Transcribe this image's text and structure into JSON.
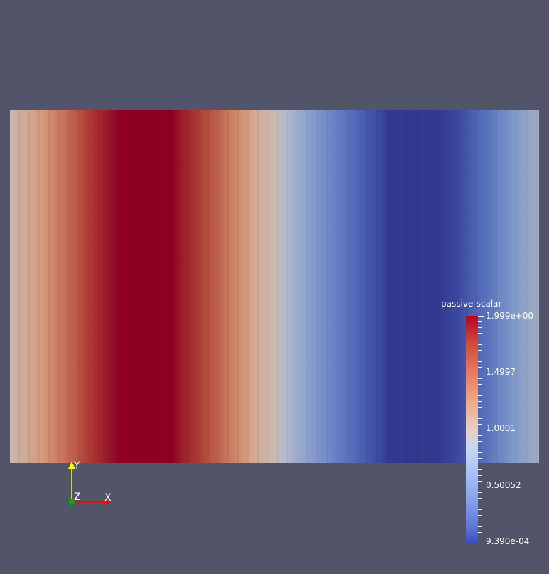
{
  "legend": {
    "title": "passive-scalar",
    "labels": [
      "1.999e+00",
      "1.4997",
      "1.0001",
      "0.50052",
      "9.390e-04"
    ],
    "label_values": [
      1.999,
      1.4997,
      1.0001,
      0.50052,
      0.000939
    ]
  },
  "axes": {
    "y_label": "Y",
    "z_label": "Z",
    "x_label": "X",
    "x_color": "#ff0000",
    "y_color": "#ffff00",
    "z_color": "#00aa00"
  },
  "colors": {
    "background": "#525469",
    "colormap_high": "#b40426",
    "colormap_mid": "#dddddd",
    "colormap_low": "#3b4cc0"
  }
}
